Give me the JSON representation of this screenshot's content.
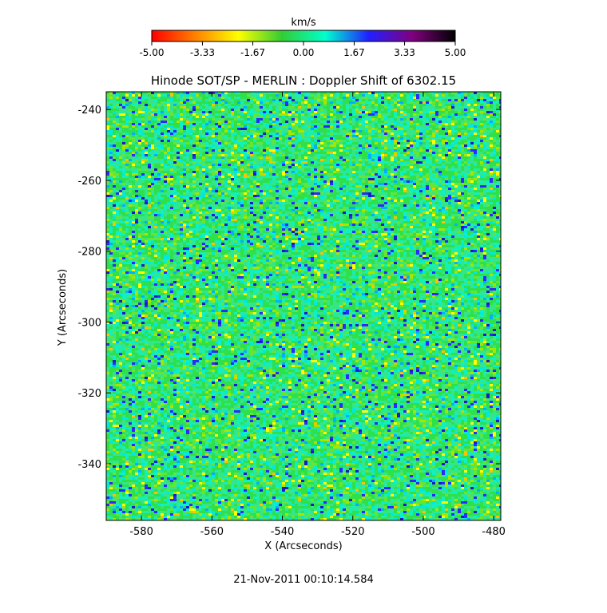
{
  "chart_data": {
    "type": "heatmap",
    "title": "Hinode SOT/SP - MERLIN : Doppler Shift of 6302.15",
    "xlabel": "X (Arcseconds)",
    "ylabel": "Y (Arcseconds)",
    "xlim": [
      -590,
      -478
    ],
    "ylim": [
      -356,
      -235
    ],
    "x_ticks": [
      -580,
      -560,
      -540,
      -520,
      -500,
      -480
    ],
    "y_ticks": [
      -240,
      -260,
      -280,
      -300,
      -320,
      -340
    ],
    "colorbar": {
      "label": "km/s",
      "range": [
        -5.0,
        5.0
      ],
      "tick_labels": [
        "-5.00",
        "-3.33",
        "-1.67",
        "0.00",
        "1.67",
        "3.33",
        "5.00"
      ],
      "tick_values": [
        -5.0,
        -3.33,
        -1.67,
        0.0,
        1.67,
        3.33,
        5.0
      ],
      "colormap": [
        "#ff0000",
        "#ff8000",
        "#ffff00",
        "#33cc33",
        "#00ffcc",
        "#2020ff",
        "#800080",
        "#000000"
      ]
    },
    "dominant_values_kms": [
      -0.8,
      0.0,
      0.9
    ]
  },
  "footer": {
    "timestamp": "21-Nov-2011 00:10:14.584"
  }
}
